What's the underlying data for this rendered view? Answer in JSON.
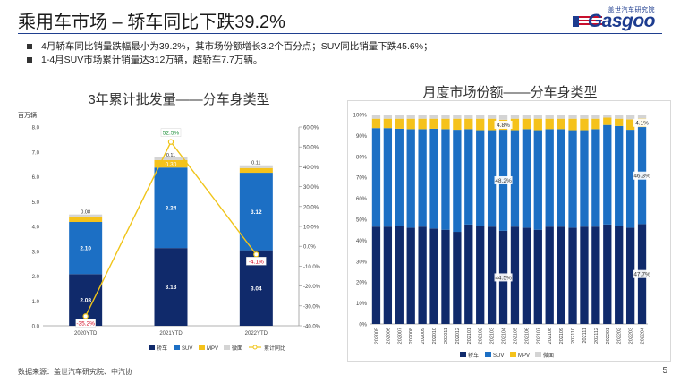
{
  "header": {
    "title": "乘用车市场 – 轿车同比下跌39.2%",
    "logo_cn": "盖世汽车研究院",
    "logo_en": "Gasgoo"
  },
  "bullets": [
    "4月轿车同比销量跌幅最小为39.2%，其市场份额增长3.2个百分点；SUV同比销量下跌45.6%；",
    "1-4月SUV市场累计销量达312万辆，超轿车7.7万辆。"
  ],
  "footer": {
    "source": "数据来源：盖世汽车研究院、中汽协",
    "page": "5"
  },
  "colors": {
    "car": "#102a6b",
    "suv": "#1c6fc4",
    "mpv": "#f5c21b",
    "micro": "#d4d4d4",
    "growth": "#f0c419"
  },
  "chart_data": [
    {
      "type": "bar",
      "stacked": true,
      "title": "3年累计批发量——分车身类型",
      "ylabel": "百万辆",
      "ylim": [
        0,
        8
      ],
      "yticks": [
        "0.0",
        "1.0",
        "2.0",
        "3.0",
        "4.0",
        "5.0",
        "6.0",
        "7.0",
        "8.0"
      ],
      "y2lim": [
        -40,
        60
      ],
      "y2ticks": [
        "-40.0%",
        "-30.0%",
        "-20.0%",
        "-10.0%",
        "0.0%",
        "10.0%",
        "20.0%",
        "30.0%",
        "40.0%",
        "50.0%",
        "60.0%"
      ],
      "categories": [
        "2020YTD",
        "2021YTD",
        "2022YTD"
      ],
      "series": [
        {
          "name": "轿车",
          "values": [
            2.08,
            3.13,
            3.04
          ],
          "labels": [
            "2.08",
            "3.13",
            "3.04"
          ]
        },
        {
          "name": "SUV",
          "values": [
            2.1,
            3.24,
            3.12
          ],
          "labels": [
            "2.10",
            "3.24",
            "3.12"
          ]
        },
        {
          "name": "MPV",
          "values": [
            0.22,
            0.3,
            0.19
          ],
          "labels": [
            "",
            "0.30",
            ""
          ]
        },
        {
          "name": "微面",
          "values": [
            0.08,
            0.11,
            0.11
          ],
          "labels": [
            "0.08",
            "0.11",
            "0.11"
          ]
        }
      ],
      "line": {
        "name": "累计同比",
        "axis": "right",
        "values": [
          -35.2,
          52.5,
          -4.1
        ],
        "labels": [
          "-35.2%",
          "52.5%",
          "-4.1%"
        ]
      },
      "legend": [
        "轿车",
        "SUV",
        "MPV",
        "微面",
        "累计同比"
      ],
      "legend_position": "bottom"
    },
    {
      "type": "bar",
      "stacked": true,
      "percent": true,
      "title": "月度市场份额——分车身类型",
      "ylim": [
        0,
        100
      ],
      "yticks": [
        "0%",
        "10%",
        "20%",
        "30%",
        "40%",
        "50%",
        "60%",
        "70%",
        "80%",
        "90%",
        "100%"
      ],
      "categories": [
        "202005",
        "202006",
        "202007",
        "202008",
        "202009",
        "202010",
        "202011",
        "202012",
        "202101",
        "202102",
        "202103",
        "202104",
        "202105",
        "202106",
        "202107",
        "202108",
        "202109",
        "202110",
        "202111",
        "202112",
        "202201",
        "202202",
        "202203",
        "202204"
      ],
      "series": [
        {
          "name": "轿车",
          "values": [
            46.5,
            46.5,
            46.8,
            46.0,
            46.5,
            45.6,
            45.0,
            44.0,
            47.5,
            47.0,
            46.5,
            44.5,
            46.5,
            46.0,
            45.0,
            46.5,
            46.5,
            46.0,
            46.5,
            46.5,
            47.5,
            47.0,
            46.0,
            47.7
          ]
        },
        {
          "name": "SUV",
          "values": [
            47.0,
            47.0,
            46.4,
            47.0,
            46.5,
            47.6,
            48.0,
            48.7,
            45.5,
            45.5,
            46.0,
            48.2,
            46.0,
            47.0,
            47.5,
            46.5,
            46.5,
            46.5,
            46.0,
            46.5,
            47.5,
            47.5,
            46.7,
            46.3
          ]
        },
        {
          "name": "MPV",
          "values": [
            4.5,
            4.5,
            4.8,
            5.0,
            5.0,
            4.8,
            5.0,
            5.3,
            5.0,
            5.5,
            5.5,
            4.8,
            5.5,
            5.0,
            5.5,
            5.0,
            5.0,
            5.5,
            5.5,
            5.0,
            3.5,
            3.5,
            5.0,
            4.1
          ]
        },
        {
          "name": "微面",
          "values": [
            2.0,
            2.0,
            2.0,
            2.0,
            2.0,
            2.0,
            2.0,
            2.0,
            2.0,
            2.0,
            2.0,
            2.5,
            2.0,
            2.0,
            2.0,
            2.0,
            2.0,
            2.0,
            2.0,
            2.0,
            1.5,
            2.0,
            2.3,
            1.9
          ]
        }
      ],
      "annotations": [
        {
          "series": "轿车",
          "index": 11,
          "text": "44.5%"
        },
        {
          "series": "SUV",
          "index": 11,
          "text": "48.2%"
        },
        {
          "series": "MPV",
          "index": 11,
          "text": "4.8%"
        },
        {
          "series": "轿车",
          "index": 23,
          "text": "47.7%"
        },
        {
          "series": "SUV",
          "index": 23,
          "text": "46.3%"
        },
        {
          "series": "MPV",
          "index": 23,
          "text": "4.1%"
        }
      ],
      "legend": [
        "轿车",
        "SUV",
        "MPV",
        "微面"
      ],
      "legend_position": "bottom"
    }
  ]
}
